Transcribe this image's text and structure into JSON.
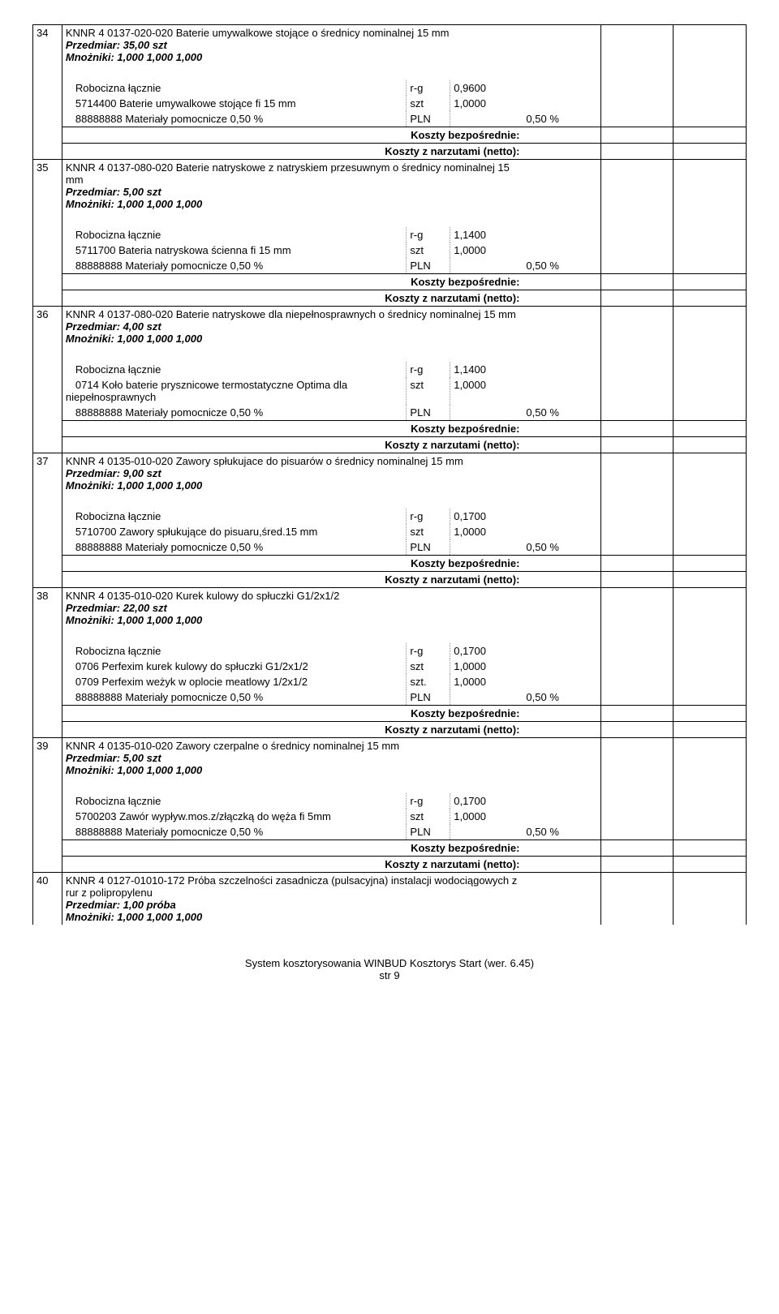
{
  "footer": {
    "line1": "System kosztorysowania WINBUD Kosztorys Start (wer. 6.45)",
    "line2": "str 9"
  },
  "labels": {
    "przedmiar": "Przedmiar:",
    "mnozniki": "Mnożniki:",
    "robocizna": "Robocizna łącznie",
    "koszty_bezp": "Koszty bezpośrednie:",
    "koszty_narz": "Koszty z narzutami (netto):",
    "materialy": "88888888 Materiały pomocnicze 0,50 %"
  },
  "items": [
    {
      "num": "34",
      "title": "KNNR 4 0137-020-020 Baterie umywalkowe stojące o średnicy nominalnej 15 mm",
      "przedmiar": "35,00 szt",
      "mnozniki": "1,000 1,000 1,000",
      "rows": [
        {
          "desc": "Robocizna łącznie",
          "unit": "r-g",
          "qty": "0,9600"
        },
        {
          "desc": "5714400 Baterie umywalkowe stojące fi 15 mm",
          "unit": "szt",
          "qty": "1,0000"
        },
        {
          "desc": "88888888 Materiały pomocnicze 0,50 %",
          "unit": "PLN",
          "qty": "",
          "pct": "0,50 %"
        }
      ]
    },
    {
      "num": "35",
      "title": "KNNR 4 0137-080-020 Baterie natryskowe z natryskiem przesuwnym o średnicy nominalnej 15 mm",
      "przedmiar": "5,00 szt",
      "mnozniki": "1,000 1,000 1,000",
      "rows": [
        {
          "desc": "Robocizna łącznie",
          "unit": "r-g",
          "qty": "1,1400"
        },
        {
          "desc": "5711700 Bateria natryskowa ścienna  fi 15 mm",
          "unit": "szt",
          "qty": "1,0000"
        },
        {
          "desc": "88888888 Materiały pomocnicze 0,50 %",
          "unit": "PLN",
          "qty": "",
          "pct": "0,50 %"
        }
      ]
    },
    {
      "num": "36",
      "title": "KNNR 4 0137-080-020 Baterie natryskowe dla niepełnosprawnych o średnicy nominalnej 15 mm",
      "przedmiar": "4,00 szt",
      "mnozniki": "1,000 1,000 1,000",
      "rows": [
        {
          "desc": "Robocizna łącznie",
          "unit": "r-g",
          "qty": "1,1400"
        },
        {
          "desc": "0714 Koło baterie prysznicowe termostatyczne Optima dla niepełnosprawnych",
          "unit": "szt",
          "qty": "1,0000"
        },
        {
          "desc": "88888888 Materiały pomocnicze 0,50 %",
          "unit": "PLN",
          "qty": "",
          "pct": "0,50 %"
        }
      ]
    },
    {
      "num": "37",
      "title": "KNNR 4 0135-010-020 Zawory spłukujace do pisuarów o średnicy nominalnej 15 mm",
      "przedmiar": "9,00 szt",
      "mnozniki": "1,000 1,000 1,000",
      "rows": [
        {
          "desc": "Robocizna łącznie",
          "unit": "r-g",
          "qty": "0,1700"
        },
        {
          "desc": "5710700 Zawory spłukujące do pisuaru,śred.15 mm",
          "unit": "szt",
          "qty": "1,0000"
        },
        {
          "desc": "88888888 Materiały pomocnicze 0,50 %",
          "unit": "PLN",
          "qty": "",
          "pct": "0,50 %"
        }
      ]
    },
    {
      "num": "38",
      "title": "KNNR 4 0135-010-020 Kurek kulowy do spłuczki G1/2x1/2",
      "przedmiar": "22,00 szt",
      "mnozniki": "1,000 1,000 1,000",
      "rows": [
        {
          "desc": "Robocizna łącznie",
          "unit": "r-g",
          "qty": "0,1700"
        },
        {
          "desc": "0706 Perfexim kurek kulowy do spłuczki G1/2x1/2",
          "unit": "szt",
          "qty": "1,0000"
        },
        {
          "desc": "0709 Perfexim weżyk w oplocie meatlowy 1/2x1/2",
          "unit": "szt.",
          "qty": "1,0000"
        },
        {
          "desc": "88888888 Materiały pomocnicze 0,50 %",
          "unit": "PLN",
          "qty": "",
          "pct": "0,50 %"
        }
      ]
    },
    {
      "num": "39",
      "title": "KNNR 4 0135-010-020 Zawory czerpalne o średnicy nominalnej 15 mm",
      "przedmiar": "5,00 szt",
      "mnozniki": "1,000 1,000 1,000",
      "rows": [
        {
          "desc": "Robocizna łącznie",
          "unit": "r-g",
          "qty": "0,1700"
        },
        {
          "desc": "5700203 Zawór wypływ.mos.z/złączką do węża fi 5mm",
          "unit": "szt",
          "qty": "1,0000"
        },
        {
          "desc": "88888888 Materiały pomocnicze 0,50 %",
          "unit": "PLN",
          "qty": "",
          "pct": "0,50 %"
        }
      ]
    },
    {
      "num": "40",
      "title": "KNNR 4 0127-01010-172 Próba szczelności zasadnicza (pulsacyjna) instalacji wodociągowych z rur z polipropylenu",
      "przedmiar": "1,00 próba",
      "mnozniki": "1,000 1,000 1,000",
      "rows": []
    }
  ]
}
